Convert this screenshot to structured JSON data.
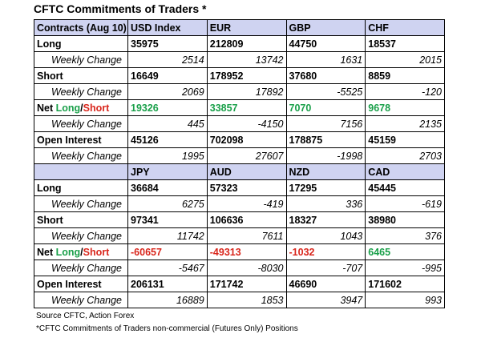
{
  "title": "CFTC Commitments of Traders *",
  "blocks": [
    {
      "header": [
        "Contracts (Aug 10)",
        "USD Index",
        "EUR",
        "GBP",
        "CHF"
      ],
      "rows": [
        {
          "label": "Long",
          "kind": "main",
          "values": [
            "35975",
            "212809",
            "44750",
            "18537"
          ]
        },
        {
          "label": "Weekly Change",
          "kind": "wk",
          "values": [
            "2514",
            "13742",
            "1631",
            "2015"
          ]
        },
        {
          "label": "Short",
          "kind": "main",
          "values": [
            "16649",
            "178952",
            "37680",
            "8859"
          ]
        },
        {
          "label": "Weekly Change",
          "kind": "wk",
          "values": [
            "2069",
            "17892",
            "-5525",
            "-120"
          ]
        },
        {
          "label": "Net Long/Short",
          "kind": "net",
          "values": [
            "19326",
            "33857",
            "7070",
            "9678"
          ]
        },
        {
          "label": "Weekly Change",
          "kind": "wk",
          "values": [
            "445",
            "-4150",
            "7156",
            "2135"
          ]
        },
        {
          "label": "Open Interest",
          "kind": "main",
          "values": [
            "45126",
            "702098",
            "178875",
            "45159"
          ]
        },
        {
          "label": "Weekly Change",
          "kind": "wk",
          "values": [
            "1995",
            "27607",
            "-1998",
            "2703"
          ]
        }
      ]
    },
    {
      "header": [
        "",
        "JPY",
        "AUD",
        "NZD",
        "CAD"
      ],
      "rows": [
        {
          "label": "Long",
          "kind": "main",
          "values": [
            "36684",
            "57323",
            "17295",
            "45445"
          ]
        },
        {
          "label": "Weekly Change",
          "kind": "wk",
          "values": [
            "6275",
            "-419",
            "336",
            "-619"
          ]
        },
        {
          "label": "Short",
          "kind": "main",
          "values": [
            "97341",
            "106636",
            "18327",
            "38980"
          ]
        },
        {
          "label": "Weekly Change",
          "kind": "wk",
          "values": [
            "11742",
            "7611",
            "1043",
            "376"
          ]
        },
        {
          "label": "Net Long/Short",
          "kind": "net",
          "values": [
            "-60657",
            "-49313",
            "-1032",
            "6465"
          ]
        },
        {
          "label": "Weekly Change",
          "kind": "wk",
          "values": [
            "-5467",
            "-8030",
            "-707",
            "-995"
          ]
        },
        {
          "label": "Open Interest",
          "kind": "main",
          "values": [
            "206131",
            "171742",
            "46690",
            "171602"
          ]
        },
        {
          "label": "Weekly Change",
          "kind": "wk",
          "values": [
            "16889",
            "1853",
            "3947",
            "993"
          ]
        }
      ]
    }
  ],
  "footer": {
    "source": "Source CFTC, Action Forex",
    "note": "*CFTC Commitments of Traders non-commercial (Futures Only) Positions"
  },
  "colors": {
    "header_bg": "#cfd3f1",
    "positive": "#1aa04a",
    "negative": "#d9261c"
  }
}
